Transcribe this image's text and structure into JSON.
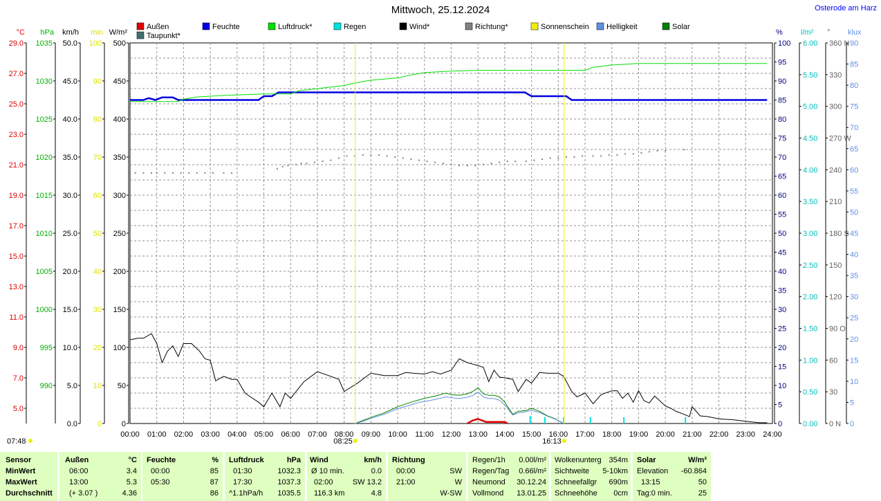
{
  "title": "Mittwoch, 25.12.2024",
  "location": "Osterode am Harz",
  "legend": [
    {
      "label": "Außen",
      "color": "#e00000"
    },
    {
      "label": "Feuchte",
      "color": "#0000e0"
    },
    {
      "label": "Luftdruck*",
      "color": "#00e000"
    },
    {
      "label": "Regen",
      "color": "#00e0e0"
    },
    {
      "label": "Wind*",
      "color": "#000000"
    },
    {
      "label": "Richtung*",
      "color": "#808080"
    },
    {
      "label": "Sonnenschein",
      "color": "#f0f000"
    },
    {
      "label": "Helligkeit",
      "color": "#6090e0"
    },
    {
      "label": "Solar",
      "color": "#008000"
    },
    {
      "label": "Taupunkt*",
      "color": "#407070"
    }
  ],
  "axes_left": [
    {
      "unit": "°C",
      "color": "#e00000",
      "ticks": [
        "29.0",
        "27.0",
        "25.0",
        "23.0",
        "21.0",
        "19.0",
        "17.0",
        "15.0",
        "13.0",
        "11.0",
        "9.0",
        "7.0",
        "5.0"
      ]
    },
    {
      "unit": "hPa",
      "color": "#00b000",
      "ticks": [
        "1035",
        "1030",
        "1025",
        "1020",
        "1015",
        "1010",
        "1005",
        "1000",
        "995",
        "990"
      ]
    },
    {
      "unit": "km/h",
      "color": "#000000",
      "ticks": [
        "50.0",
        "45.0",
        "40.0",
        "35.0",
        "30.0",
        "25.0",
        "20.0",
        "15.0",
        "10.0",
        "5.0",
        "0.0"
      ]
    },
    {
      "unit": "min",
      "color": "#e0e000",
      "ticks": [
        "100",
        "90",
        "80",
        "70",
        "60",
        "50",
        "40",
        "30",
        "20",
        "10",
        "0"
      ]
    },
    {
      "unit": "W/m²",
      "color": "#000000",
      "ticks": [
        "500",
        "450",
        "400",
        "350",
        "300",
        "250",
        "200",
        "150",
        "100",
        "50",
        "0"
      ]
    }
  ],
  "axes_right": [
    {
      "unit": "%",
      "color": "#000080",
      "ticks": [
        "100",
        "95",
        "90",
        "85",
        "80",
        "75",
        "70",
        "65",
        "60",
        "55",
        "50",
        "45",
        "40",
        "35",
        "30",
        "25",
        "20",
        "15",
        "10",
        "5",
        "0"
      ]
    },
    {
      "unit": "l/m²",
      "color": "#00c0c0",
      "ticks": [
        "6.00",
        "5.50",
        "5.00",
        "4.50",
        "4.00",
        "3.50",
        "3.00",
        "2.50",
        "2.00",
        "1.50",
        "1.00",
        "0.50",
        "0.00"
      ]
    },
    {
      "unit": "°",
      "color": "#606060",
      "ticks": [
        "360 N",
        "330",
        "300",
        "270 W",
        "240",
        "210",
        "180 S",
        "150",
        "120",
        "90 O",
        "60",
        "30",
        "0 N"
      ]
    },
    {
      "unit": "klux",
      "color": "#6090e0",
      "ticks": [
        "90",
        "85",
        "80",
        "75",
        "70",
        "65",
        "60",
        "55",
        "50",
        "45",
        "40",
        "35",
        "30",
        "25",
        "20",
        "15",
        "10",
        "5",
        "0"
      ]
    }
  ],
  "sun": {
    "sunrise": "07:48",
    "sunshine_start": "08:25",
    "sunshine_end": "16:13"
  },
  "chart_data": {
    "type": "line",
    "x_ticks": [
      "00:00",
      "01:00",
      "02:00",
      "03:00",
      "04:00",
      "05:00",
      "06:00",
      "07:00",
      "08:00",
      "09:00",
      "10:00",
      "11:00",
      "12:00",
      "13:00",
      "14:00",
      "15:00",
      "16:00",
      "17:00",
      "18:00",
      "19:00",
      "20:00",
      "21:00",
      "22:00",
      "23:00",
      "24:00"
    ],
    "xlim_hours": [
      0,
      24
    ],
    "grid": true,
    "series": [
      {
        "name": "Feuchte",
        "unit": "%",
        "ylim": [
          0,
          100
        ],
        "color": "#0000e0",
        "x": [
          0,
          0.5,
          0.7,
          0.95,
          1.2,
          1.6,
          1.8,
          2.5,
          3.5,
          4.5,
          4.8,
          5.0,
          5.3,
          5.55,
          6.0,
          7.0,
          8.0,
          9.0,
          10.0,
          11.0,
          12.0,
          13.0,
          14.0,
          14.75,
          15.0,
          15.5,
          16.0,
          16.3,
          16.5,
          17.0,
          18.0,
          19.0,
          20.0,
          21.0,
          22.0,
          23.0,
          23.8
        ],
        "values": [
          85,
          85,
          85.5,
          85,
          85.7,
          85.7,
          85,
          85,
          85,
          85,
          85,
          86,
          86,
          87,
          87,
          87,
          87,
          87,
          87,
          87,
          87,
          87,
          87,
          87,
          86,
          86,
          86,
          86,
          85,
          85,
          85,
          85,
          85,
          85,
          85,
          85,
          85
        ]
      },
      {
        "name": "Luftdruck*",
        "unit": "hPa",
        "ylim": [
          990,
          1040
        ],
        "color": "#00e000",
        "x": [
          0,
          1,
          1.8,
          2.0,
          2.5,
          3.5,
          5.0,
          6.0,
          6.3,
          7.0,
          8.0,
          8.5,
          9.0,
          10.0,
          10.5,
          11.0,
          12.0,
          13.0,
          14.0,
          15.0,
          16.0,
          17.0,
          17.3,
          18.0,
          19.0,
          20.0,
          21.0,
          22.0,
          23.0,
          23.8
        ],
        "values": [
          1032.3,
          1032.3,
          1032.3,
          1032.6,
          1032.9,
          1033.1,
          1033.3,
          1033.3,
          1033.7,
          1034.0,
          1034.4,
          1034.8,
          1035.1,
          1035.4,
          1035.8,
          1036.1,
          1036.3,
          1036.4,
          1036.4,
          1036.4,
          1036.4,
          1036.4,
          1036.8,
          1037.1,
          1037.3,
          1037.3,
          1037.3,
          1037.3,
          1037.3,
          1037.3
        ]
      },
      {
        "name": "Wind*",
        "unit": "km/h",
        "ylim": [
          0,
          50
        ],
        "color": "#000000",
        "x": [
          0,
          0.3,
          0.5,
          0.8,
          1.0,
          1.2,
          1.4,
          1.6,
          1.8,
          2.0,
          2.3,
          2.6,
          2.8,
          3.0,
          3.2,
          3.5,
          3.8,
          4.0,
          4.3,
          4.5,
          4.8,
          5.0,
          5.3,
          5.6,
          5.8,
          6.0,
          6.5,
          7.0,
          7.5,
          7.8,
          8.0,
          8.5,
          8.8,
          9.0,
          9.5,
          10.0,
          10.3,
          10.6,
          11.0,
          11.3,
          11.6,
          12.0,
          12.3,
          12.6,
          12.8,
          13.0,
          13.2,
          13.4,
          13.6,
          13.8,
          14.0,
          14.3,
          14.5,
          14.8,
          15.0,
          15.3,
          15.6,
          16.0,
          16.2,
          16.5,
          16.7,
          17.0,
          17.3,
          17.6,
          18.0,
          18.2,
          18.4,
          18.6,
          18.8,
          19.0,
          19.2,
          19.4,
          19.6,
          20.0,
          20.2,
          20.4,
          20.7,
          20.9,
          21.0,
          21.3,
          21.6,
          22.0,
          22.5,
          23.0,
          23.5,
          23.8
        ],
        "values": [
          11.0,
          11.2,
          11.2,
          11.8,
          10.5,
          8.0,
          9.5,
          10.2,
          8.8,
          10.5,
          10.5,
          9.5,
          8.5,
          8.3,
          5.6,
          6.2,
          5.8,
          5.8,
          4.0,
          3.5,
          2.8,
          2.2,
          4.0,
          2.2,
          4.0,
          3.3,
          5.5,
          6.8,
          6.2,
          5.8,
          4.2,
          5.3,
          6.1,
          6.6,
          6.3,
          6.3,
          6.7,
          6.6,
          6.5,
          6.8,
          6.5,
          7.0,
          8.5,
          8.0,
          7.8,
          7.6,
          7.4,
          5.5,
          7.0,
          6.1,
          6.0,
          5.8,
          4.2,
          5.8,
          5.3,
          6.7,
          6.6,
          6.6,
          6.2,
          4.2,
          3.5,
          4.0,
          2.6,
          3.8,
          4.3,
          4.3,
          3.3,
          4.0,
          2.8,
          4.3,
          3.0,
          2.7,
          3.6,
          2.3,
          2.0,
          1.6,
          1.2,
          0.9,
          2.2,
          1.0,
          0.9,
          0.6,
          0.5,
          0.3,
          0.1,
          0.1
        ]
      },
      {
        "name": "Richtung*",
        "unit": "°",
        "ylim": [
          0,
          360
        ],
        "color": "#808080",
        "x": [
          0.2,
          0.5,
          0.8,
          1.0,
          1.3,
          1.6,
          1.9,
          2.2,
          2.5,
          2.8,
          3.1,
          3.5,
          3.8,
          5.5,
          5.7,
          5.9,
          6.2,
          6.4,
          6.6,
          6.9,
          7.2,
          7.5,
          7.8,
          8.1,
          8.4,
          8.7,
          9.0,
          9.3,
          9.6,
          9.9,
          10.2,
          10.5,
          10.8,
          11.1,
          11.4,
          11.7,
          12.0,
          12.3,
          12.6,
          12.9,
          13.2,
          13.5,
          13.8,
          14.1,
          14.4,
          14.8,
          15.1,
          15.4,
          15.7,
          16.0,
          16.3,
          16.6,
          16.9,
          17.3,
          17.6,
          17.9,
          18.2,
          18.5,
          18.8,
          19.1,
          19.4,
          19.7,
          20.0,
          20.7
        ],
        "values": [
          237,
          237,
          237,
          237,
          237,
          237,
          237,
          237,
          237,
          237,
          237,
          237,
          237,
          241,
          243,
          244,
          245,
          246,
          246,
          247,
          248,
          249,
          251,
          253,
          253,
          254,
          254,
          254,
          253,
          252,
          251,
          250,
          249,
          248,
          247,
          246,
          245,
          244,
          244,
          244,
          245,
          246,
          247,
          248,
          248,
          248,
          249,
          250,
          251,
          251,
          252,
          252,
          253,
          253,
          253,
          254,
          254,
          255,
          255,
          256,
          257,
          258,
          258,
          259
        ]
      },
      {
        "name": "Solar",
        "unit": "W/m²",
        "ylim": [
          0,
          500
        ],
        "color": "#008000",
        "x": [
          8.4,
          8.7,
          9.0,
          9.5,
          10.0,
          10.5,
          10.8,
          11.0,
          11.4,
          11.8,
          12.0,
          12.3,
          12.6,
          12.8,
          13.0,
          13.2,
          13.4,
          13.6,
          13.8,
          14.0,
          14.3,
          14.5,
          14.8,
          15.0,
          15.3,
          15.6,
          15.9,
          16.1,
          16.2
        ],
        "values": [
          0,
          4,
          8,
          14,
          22,
          28,
          31,
          33,
          36,
          40,
          38,
          37,
          39,
          42,
          47,
          39,
          37,
          37,
          35,
          28,
          12,
          16,
          17,
          20,
          16,
          10,
          6,
          2,
          0
        ]
      },
      {
        "name": "Helligkeit",
        "unit": "klux",
        "ylim": [
          0,
          90
        ],
        "color": "#6090e0",
        "x": [
          8.4,
          8.7,
          9.0,
          9.5,
          10.0,
          10.5,
          10.8,
          11.0,
          11.4,
          11.8,
          12.0,
          12.3,
          12.6,
          12.8,
          13.0,
          13.2,
          13.4,
          13.6,
          13.8,
          14.0,
          14.3,
          14.5,
          14.8,
          15.0,
          15.3,
          15.6,
          15.9,
          16.1,
          16.2
        ],
        "values": [
          0,
          0.5,
          1.2,
          2.2,
          3.5,
          4.4,
          5.0,
          5.2,
          5.7,
          6.3,
          6.1,
          5.9,
          6.2,
          6.6,
          7.4,
          6.3,
          5.9,
          5.9,
          5.5,
          4.4,
          2.0,
          2.5,
          2.8,
          3.1,
          2.6,
          1.7,
          1.0,
          0.4,
          0
        ]
      },
      {
        "name": "Außen",
        "unit": "°C",
        "ylim": [
          5,
          30
        ],
        "color": "#e00000",
        "x": [
          12.6,
          12.8,
          13.0,
          13.3,
          13.6,
          13.8,
          14.0,
          14.1
        ],
        "values": [
          5.0,
          5.2,
          5.3,
          5.1,
          5.1,
          5.1,
          5.1,
          5.0
        ]
      },
      {
        "name": "Regen",
        "unit": "l/m²",
        "ylim": [
          0,
          6
        ],
        "color": "#00e0e0",
        "x": [
          14.95,
          15.5,
          16.2,
          17.2,
          18.45,
          20.75
        ],
        "values": [
          0.12,
          0.1,
          0.1,
          0.1,
          0.1,
          0.1
        ]
      }
    ]
  },
  "summary": {
    "labels": [
      "Sensor",
      "MinWert",
      "MaxWert",
      "Durchschnitt"
    ],
    "aussen": {
      "h1": "Außen",
      "h2": "°C",
      "r1a": "06:00",
      "r1b": "3.4",
      "r2a": "13:00",
      "r2b": "5.3",
      "r3a": "(+ 3.07 )",
      "r3b": "4.36"
    },
    "feuchte": {
      "h1": "Feuchte",
      "h2": "%",
      "r1a": "00:00",
      "r1b": "85",
      "r2a": "05:30",
      "r2b": "87",
      "r3a": "",
      "r3b": "86"
    },
    "luftdruck": {
      "h1": "Luftdruck",
      "h2": "hPa",
      "r1a": "01:30",
      "r1b": "1032.3",
      "r2a": "17:30",
      "r2b": "1037.3",
      "r3a": "^1.1hPa/h",
      "r3b": "1035.5"
    },
    "wind": {
      "h1": "Wind",
      "h2": "km/h",
      "r1a": "Ø 10 min.",
      "r1b": "0.0",
      "r2a": "02:00",
      "r2b": "SW 13.2",
      "r3a": "116.3 km",
      "r3b": "4.8"
    },
    "richtung": {
      "h1": "Richtung",
      "h2": "",
      "r1a": "00:00",
      "r1b": "SW",
      "r2a": "21:00",
      "r2b": "W",
      "r3a": "",
      "r3b": "W-SW"
    },
    "regen": [
      [
        "Regen/1h",
        "0.00l/m²"
      ],
      [
        "Regen/Tag",
        "0.66l/m²"
      ],
      [
        "Neumond",
        "30.12.24"
      ],
      [
        "Vollmond",
        "13.01.25"
      ]
    ],
    "wolken": [
      [
        "Wolkenunterg",
        "354m"
      ],
      [
        "Sichtweite",
        "5-10km"
      ],
      [
        "Schneefallgr",
        "690m"
      ],
      [
        "Schneehöhe",
        "0cm"
      ]
    ],
    "solar": {
      "h1": "Solar",
      "h2": "W/m²",
      "r1a": "Elevation",
      "r1b": "-60.864",
      "r2a": "13:15",
      "r2b": "50",
      "r3a": "Tag:0 min.",
      "r3b": "25"
    }
  }
}
